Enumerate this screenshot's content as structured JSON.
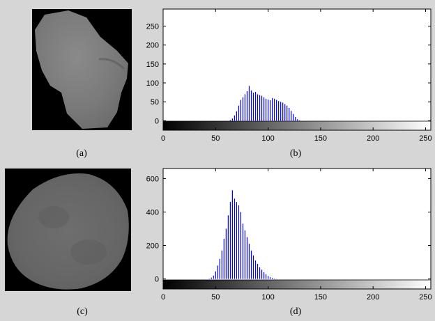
{
  "captions": {
    "a": "(a)",
    "b": "(b)",
    "c": "(c)",
    "d": "(d)"
  },
  "colors": {
    "bar": "#0000ff",
    "plot_bg": "#ffffff",
    "figure_bg": "#d6d6d6"
  },
  "chart_data": [
    {
      "type": "bar",
      "xlim": [
        0,
        255
      ],
      "ylim": [
        -25,
        295
      ],
      "xticks": [
        0,
        50,
        100,
        150,
        200,
        250
      ],
      "yticks": [
        0,
        50,
        100,
        150,
        200,
        250
      ],
      "colorbar": "grayscale 0-255",
      "x": [
        64,
        66,
        68,
        70,
        72,
        74,
        76,
        78,
        80,
        82,
        84,
        86,
        88,
        90,
        92,
        94,
        96,
        98,
        100,
        102,
        104,
        106,
        108,
        110,
        112,
        114,
        116,
        118,
        120,
        122,
        124,
        126,
        128,
        130
      ],
      "values": [
        2,
        6,
        14,
        25,
        40,
        55,
        62,
        70,
        78,
        92,
        80,
        74,
        76,
        70,
        68,
        66,
        62,
        58,
        56,
        54,
        60,
        58,
        55,
        52,
        50,
        48,
        44,
        40,
        34,
        26,
        18,
        10,
        4,
        1
      ]
    },
    {
      "type": "bar",
      "xlim": [
        0,
        255
      ],
      "ylim": [
        -60,
        660
      ],
      "xticks": [
        0,
        50,
        100,
        150,
        200,
        250
      ],
      "yticks": [
        0,
        200,
        400,
        600
      ],
      "colorbar": "grayscale 0-255",
      "x": [
        44,
        46,
        48,
        50,
        52,
        54,
        56,
        58,
        60,
        62,
        64,
        66,
        68,
        70,
        72,
        74,
        76,
        78,
        80,
        82,
        84,
        86,
        88,
        90,
        92,
        94,
        96,
        98,
        100,
        102,
        104,
        106,
        108,
        110
      ],
      "values": [
        2,
        8,
        20,
        45,
        80,
        120,
        170,
        240,
        300,
        380,
        460,
        530,
        480,
        460,
        440,
        400,
        330,
        290,
        250,
        210,
        170,
        140,
        110,
        90,
        70,
        55,
        40,
        28,
        18,
        10,
        6,
        3,
        1,
        0
      ]
    }
  ]
}
